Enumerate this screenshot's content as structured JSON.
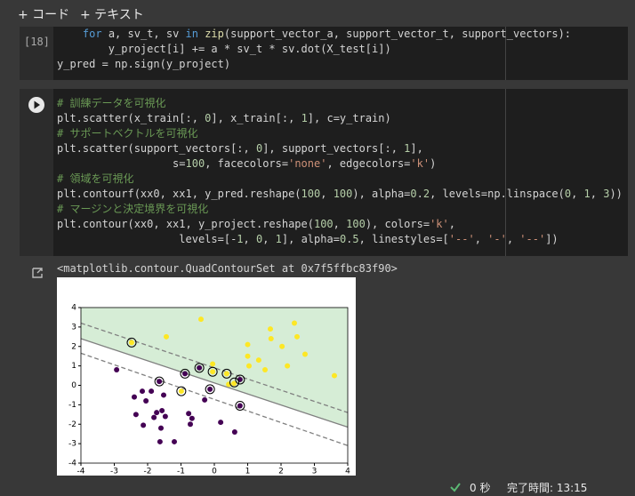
{
  "toolbar": {
    "add_code": "+ コード",
    "add_text": "+ テキスト"
  },
  "cells": [
    {
      "execution_count": "[18]",
      "code": [
        "    for a, sv_t, sv in zip(support_vector_a, support_vector_t, support_vectors):",
        "        y_project[i] += a * sv_t * sv.dot(X_test[i])",
        "y_pred = np.sign(y_project)"
      ]
    },
    {
      "code": [
        "# 訓練データを可視化",
        "plt.scatter(x_train[:, 0], x_train[:, 1], c=y_train)",
        "# サポートベクトルを可視化",
        "plt.scatter(support_vectors[:, 0], support_vectors[:, 1],",
        "                  s=100, facecolors='none', edgecolors='k')",
        "# 領域を可視化",
        "plt.contourf(xx0, xx1, y_pred.reshape(100, 100), alpha=0.2, levels=np.linspace(0, 1, 3))",
        "# マージンと決定境界を可視化",
        "plt.contour(xx0, xx1, y_project.reshape(100, 100), colors='k',",
        "                   levels=[-1, 0, 1], alpha=0.5, linestyles=['--', '-', '--'])"
      ]
    }
  ],
  "output": {
    "text": "<matplotlib.contour.QuadContourSet at 0x7f5ffbc83f90>",
    "chart_data": {
      "type": "scatter",
      "xlim": [
        -4,
        4
      ],
      "ylim": [
        -4,
        4
      ],
      "xticks": [
        -4,
        -3,
        -2,
        -1,
        0,
        1,
        2,
        3,
        4
      ],
      "yticks": [
        -4,
        -3,
        -2,
        -1,
        0,
        1,
        2,
        3,
        4
      ],
      "region_color": "#d6edd6",
      "series": [
        {
          "color": "#440154",
          "x": [
            -2.93,
            -1.65,
            -0.88,
            -0.45,
            -0.13,
            0.77,
            0.77,
            -2.4,
            -2.16,
            -1.89,
            -1.52,
            -2.05,
            -2.35,
            -2.13,
            -1.81,
            -1.73,
            -1.57,
            -1.6,
            -1.63,
            -1.2,
            -0.77,
            -0.72,
            -0.67,
            -0.29,
            0.19,
            0.61,
            -1.47
          ],
          "y": [
            0.8,
            0.2,
            0.6,
            0.9,
            -0.2,
            0.3,
            -1.05,
            -0.6,
            -0.3,
            -0.3,
            -0.5,
            -0.8,
            -1.5,
            -2.05,
            -1.65,
            -1.4,
            -1.3,
            -2.2,
            -2.9,
            -2.9,
            -1.45,
            -2.0,
            -1.7,
            -0.75,
            -1.9,
            -2.4,
            -1.6
          ]
        },
        {
          "color": "#fde725",
          "x": [
            -0.4,
            -1.44,
            -2.48,
            1.68,
            2.4,
            1.0,
            1.0,
            1.33,
            1.04,
            1.52,
            2.03,
            2.48,
            2.72,
            2.19,
            3.6,
            1.7,
            -0.05,
            -0.05,
            0.37,
            0.43,
            0.59,
            -0.99
          ],
          "y": [
            3.4,
            2.5,
            2.2,
            2.9,
            3.2,
            2.1,
            1.5,
            1.3,
            1.0,
            0.8,
            2.0,
            2.5,
            1.6,
            1.0,
            0.5,
            2.4,
            1.1,
            0.7,
            0.6,
            0.05,
            0.1,
            -0.3
          ]
        },
        {
          "color": "#000000",
          "fill": "none",
          "x": [
            -2.48,
            -1.65,
            -0.88,
            -0.45,
            -0.13,
            -0.05,
            0.37,
            -0.99,
            0.77,
            0.77,
            0.6
          ],
          "y": [
            2.2,
            0.2,
            0.6,
            0.9,
            -0.2,
            0.7,
            0.6,
            -0.3,
            0.3,
            -1.05,
            0.15
          ]
        }
      ],
      "lines": [
        {
          "color": "#808080",
          "dash": true,
          "x": [
            -4,
            4
          ],
          "y": [
            3.2,
            -1.4
          ]
        },
        {
          "color": "#808080",
          "dash": false,
          "x": [
            -4,
            4
          ],
          "y": [
            2.4,
            -2.15
          ]
        },
        {
          "color": "#808080",
          "dash": true,
          "x": [
            -4,
            4
          ],
          "y": [
            1.65,
            -3.1
          ]
        }
      ]
    }
  },
  "status": {
    "duration": "0 秒",
    "completed": "完了時間: 13:15"
  }
}
